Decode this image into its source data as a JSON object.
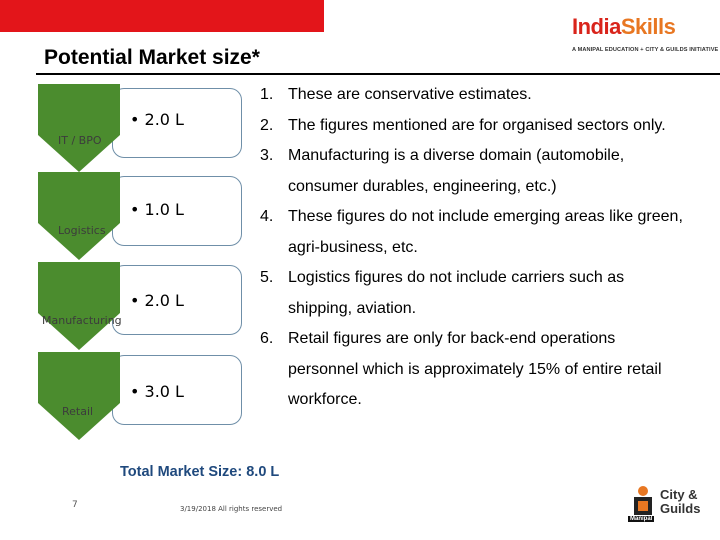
{
  "title": "Potential Market size*",
  "logo": {
    "word_part1": "India",
    "word_part2": "Skills",
    "tagline": "A MANIPAL EDUCATION + CITY & GUILDS INITIATIVE"
  },
  "sectors": [
    {
      "label": "IT / BPO",
      "value": "• 2.0 L"
    },
    {
      "label": "Logistics",
      "value": "• 1.0 L"
    },
    {
      "label": "Manufacturing",
      "value": "• 2.0 L"
    },
    {
      "label": "Retail",
      "value": "• 3.0 L"
    }
  ],
  "notes": [
    {
      "num": "1.",
      "text": "These are conservative estimates."
    },
    {
      "num": "2.",
      "text": "The figures mentioned are for organised sectors only."
    },
    {
      "num": "3.",
      "text": "Manufacturing is a diverse domain (automobile, consumer durables, engineering, etc.)"
    },
    {
      "num": "4.",
      "text": "These figures do not include emerging areas like green, agri-business, etc."
    },
    {
      "num": "5.",
      "text": "Logistics figures do not include carriers such as shipping, aviation."
    },
    {
      "num": "6.",
      "text": "Retail figures are only for back-end operations personnel which is approximately 15% of entire retail workforce."
    }
  ],
  "total": "Total Market Size: 8.0 L",
  "page_number": "7",
  "footer": "3/19/2018 All rights reserved",
  "cg_logo": {
    "line1": "City &",
    "line2": "Guilds",
    "sub": "Manipal"
  },
  "colors": {
    "accent_red": "#e3151a",
    "chevron_green": "#4b8c2e",
    "total_blue": "#1f497d"
  }
}
